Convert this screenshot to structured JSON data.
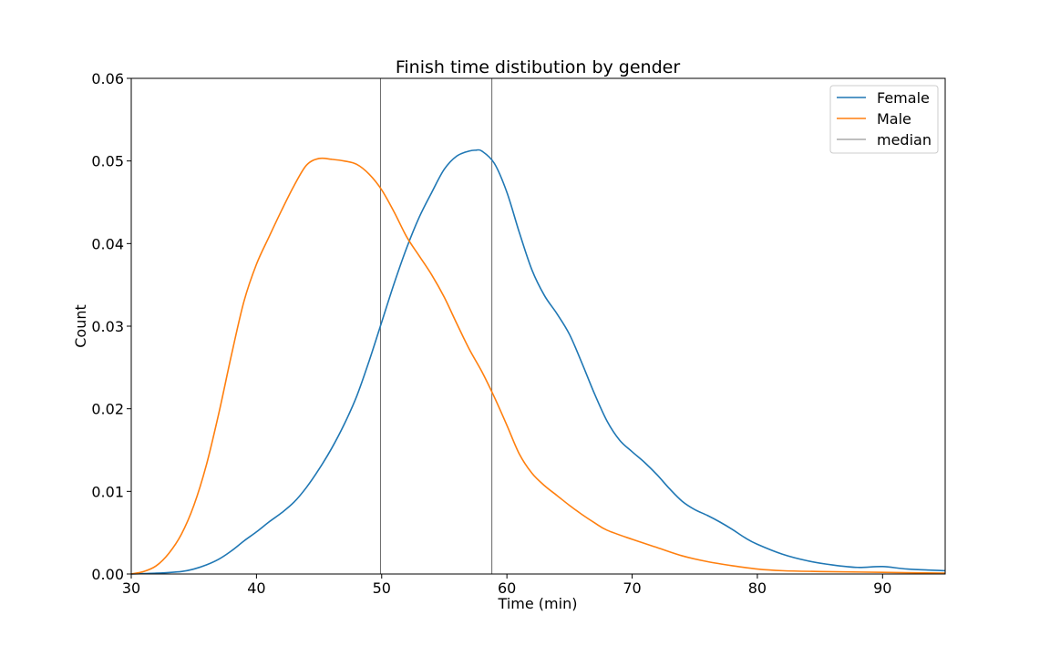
{
  "chart_data": {
    "type": "line",
    "title": "Finish time distibution by gender",
    "xlabel": "Time (min)",
    "ylabel": "Count",
    "xlim": [
      30,
      95
    ],
    "ylim": [
      0,
      0.06
    ],
    "xticks": [
      30,
      40,
      50,
      60,
      70,
      80,
      90
    ],
    "xtick_labels": [
      "30",
      "40",
      "50",
      "60",
      "70",
      "80",
      "90"
    ],
    "yticks": [
      0,
      0.01,
      0.02,
      0.03,
      0.04,
      0.05,
      0.06
    ],
    "ytick_labels": [
      "0.00",
      "0.01",
      "0.02",
      "0.03",
      "0.04",
      "0.05",
      "0.06"
    ],
    "grid": false,
    "legend_position": "top-right",
    "series": [
      {
        "name": "Female",
        "color": "#1f77b4",
        "x": [
          30,
          32,
          34,
          35,
          36,
          37,
          38,
          39,
          40,
          41,
          42,
          43,
          44,
          45,
          46,
          47,
          48,
          49,
          50,
          51,
          52,
          53,
          54,
          55,
          56,
          57,
          57.5,
          58,
          59,
          60,
          61,
          62,
          63,
          64,
          65,
          66,
          67,
          68,
          69,
          70,
          71,
          72,
          73,
          74,
          75,
          76,
          77,
          78,
          79,
          80,
          82,
          84,
          86,
          88,
          90,
          92,
          95
        ],
        "y": [
          0.0,
          0.0001,
          0.0003,
          0.0006,
          0.0011,
          0.0018,
          0.0028,
          0.004,
          0.0051,
          0.0063,
          0.0074,
          0.0087,
          0.0105,
          0.0127,
          0.0152,
          0.0181,
          0.0215,
          0.0258,
          0.0305,
          0.0352,
          0.0395,
          0.0432,
          0.0462,
          0.049,
          0.0506,
          0.0512,
          0.0513,
          0.0512,
          0.0497,
          0.0462,
          0.0413,
          0.0368,
          0.0337,
          0.0315,
          0.029,
          0.0255,
          0.0218,
          0.0185,
          0.0162,
          0.0148,
          0.0135,
          0.012,
          0.0103,
          0.0088,
          0.0078,
          0.0071,
          0.0063,
          0.0054,
          0.0044,
          0.0036,
          0.0024,
          0.0016,
          0.0011,
          0.0008,
          0.0009,
          0.0006,
          0.0004
        ]
      },
      {
        "name": "Male",
        "color": "#ff7f0e",
        "x": [
          30,
          31,
          32,
          33,
          34,
          35,
          36,
          37,
          38,
          39,
          40,
          41,
          42,
          43,
          44,
          45,
          46,
          47,
          48,
          49,
          50,
          51,
          52,
          53,
          54,
          55,
          56,
          57,
          58,
          59,
          60,
          61,
          62,
          63,
          64,
          65,
          66,
          67,
          68,
          70,
          72,
          74,
          76,
          78,
          80,
          82,
          85,
          90,
          95
        ],
        "y": [
          0.0,
          0.0003,
          0.001,
          0.0025,
          0.0048,
          0.0083,
          0.0132,
          0.0195,
          0.0265,
          0.033,
          0.0375,
          0.0408,
          0.044,
          0.047,
          0.0495,
          0.0503,
          0.0502,
          0.05,
          0.0496,
          0.0484,
          0.0465,
          0.0438,
          0.0408,
          0.0385,
          0.0362,
          0.0335,
          0.0303,
          0.0272,
          0.0245,
          0.0214,
          0.018,
          0.0145,
          0.0122,
          0.0107,
          0.0095,
          0.0083,
          0.0072,
          0.0062,
          0.0053,
          0.0042,
          0.0032,
          0.0022,
          0.0015,
          0.001,
          0.0006,
          0.0004,
          0.0003,
          0.0002,
          0.0001
        ]
      }
    ],
    "reference_lines": {
      "name": "median",
      "color": "#555555",
      "x": [
        49.9,
        58.8
      ]
    }
  }
}
